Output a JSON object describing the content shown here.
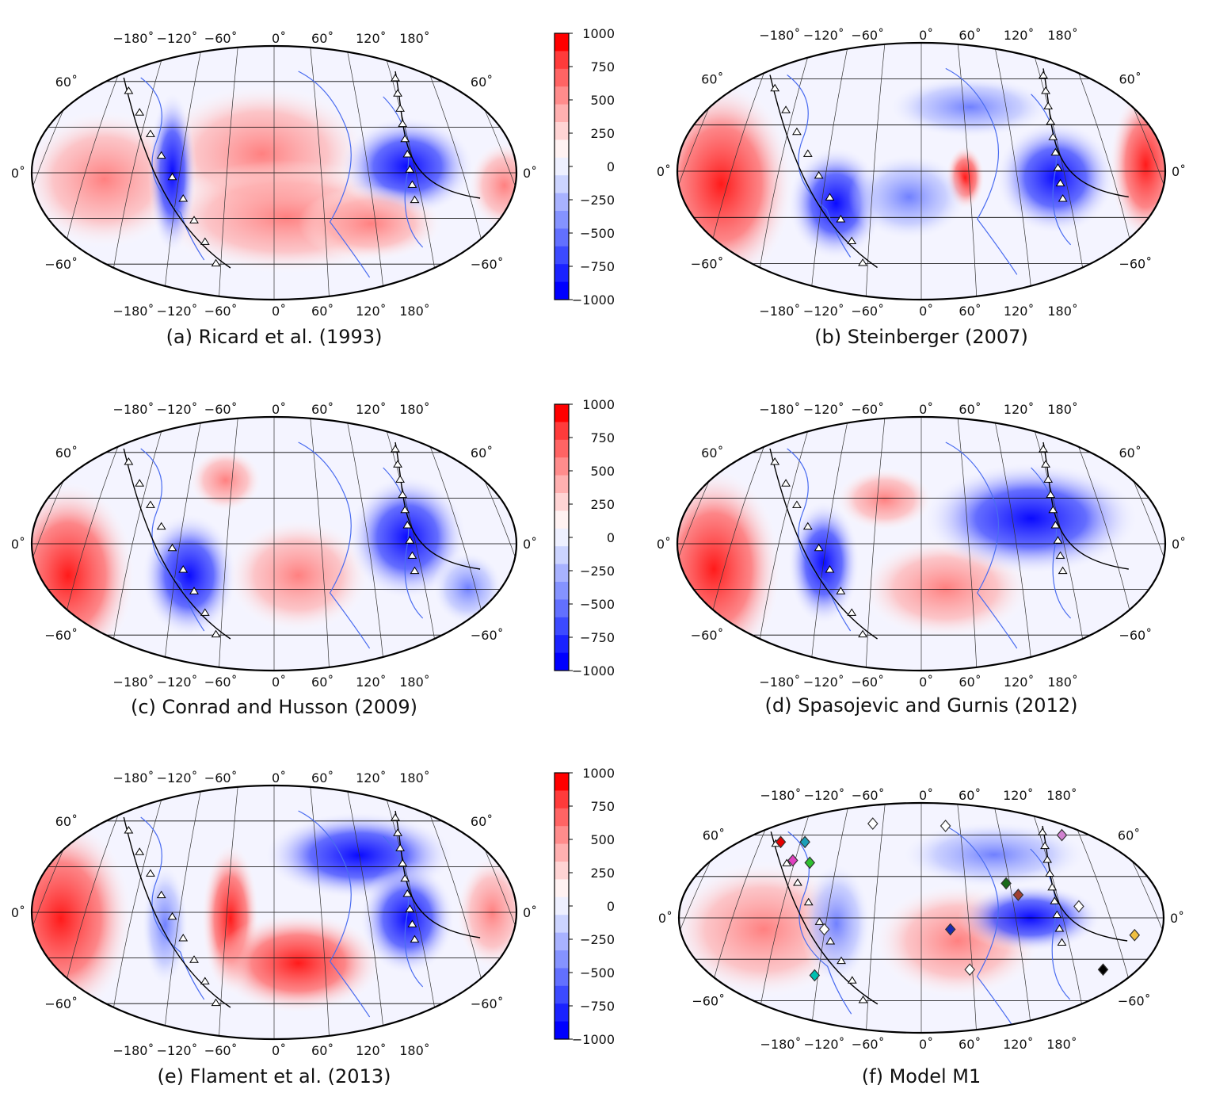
{
  "colorbar": {
    "ticks": [
      "1000",
      "750",
      "500",
      "250",
      "0",
      "−250",
      "−500",
      "−750",
      "−1000"
    ],
    "colors": [
      "#ff0000",
      "#ff3b3b",
      "#ff6464",
      "#ff8c8c",
      "#ffb0b0",
      "#ffd4d4",
      "#fff2f2",
      "#eef0ff",
      "#ccd4ff",
      "#a8b2ff",
      "#8593ff",
      "#6270ff",
      "#3c4aff",
      "#1a22ff",
      "#0000ff"
    ],
    "red": "#ff0000",
    "blue": "#0000ff",
    "white": "#ffffff"
  },
  "grid": {
    "top_lon_labels": [
      "−180˚",
      "−120˚",
      "−60˚",
      "0˚",
      "60˚",
      "120˚",
      "180˚"
    ],
    "bottom_lon_labels": [
      "−180˚",
      "−120˚",
      "−60˚",
      "0˚",
      "60˚",
      "120˚",
      "180˚"
    ],
    "left_lat_labels": [
      "60˚",
      "0˚",
      "−60˚"
    ],
    "right_lat_labels": [
      "60˚",
      "0˚",
      "−60˚"
    ]
  },
  "panels": [
    {
      "caption": "(a) Ricard et al. (1993)"
    },
    {
      "caption": "(b) Steinberger (2007)"
    },
    {
      "caption": "(c) Conrad and Husson (2009)"
    },
    {
      "caption": "(d) Spasojevic and Gurnis (2012)"
    },
    {
      "caption": "(e) Flament et al. (2013)"
    },
    {
      "caption": "(f) Model M1"
    }
  ]
}
